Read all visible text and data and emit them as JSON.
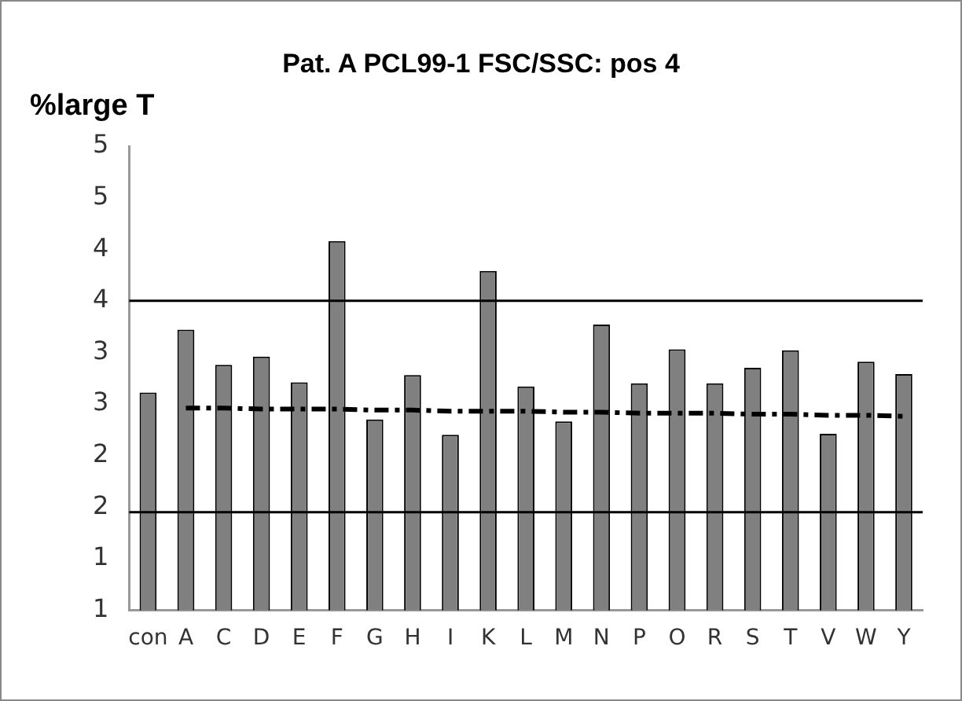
{
  "chart_data": {
    "type": "bar",
    "title": "Pat. A PCL99-1 FSC/SSC: pos 4",
    "ylabel": "%large T",
    "categories": [
      "con",
      "A",
      "C",
      "D",
      "E",
      "F",
      "G",
      "H",
      "I",
      "K",
      "L",
      "M",
      "N",
      "P",
      "O",
      "R",
      "S",
      "T",
      "V",
      "W",
      "Y"
    ],
    "series": [
      {
        "type": "bar",
        "color": "#808080",
        "values": [
          3.11,
          3.72,
          3.38,
          3.46,
          3.21,
          4.58,
          2.85,
          3.28,
          2.7,
          4.29,
          3.17,
          2.83,
          3.77,
          3.2,
          3.53,
          3.2,
          3.35,
          3.52,
          2.71,
          3.41,
          3.29
        ]
      },
      {
        "type": "line",
        "color": "#000000",
        "line_style": "dashed",
        "marker": "none",
        "values": [
          null,
          2.96,
          2.96,
          2.95,
          2.95,
          2.95,
          2.94,
          2.94,
          2.93,
          2.93,
          2.93,
          2.92,
          2.92,
          2.91,
          2.91,
          2.91,
          2.9,
          2.9,
          2.89,
          2.89,
          2.88
        ]
      }
    ],
    "ylim": [
      1,
      5.5
    ],
    "yticks": [
      1,
      {
        "value": 1.5,
        "label": "1"
      },
      2,
      {
        "value": 2.5,
        "label": "2"
      },
      3,
      {
        "value": 3.5,
        "label": "3"
      },
      4,
      {
        "value": 4.5,
        "label": "4"
      },
      5,
      {
        "value": 5.5,
        "label": "5"
      }
    ],
    "ref_lines": [
      {
        "axis": "y",
        "value": 4,
        "color": "#000000"
      },
      {
        "axis": "y",
        "value": 1.95,
        "color": "#000000"
      }
    ],
    "grid": false,
    "legend": false
  }
}
